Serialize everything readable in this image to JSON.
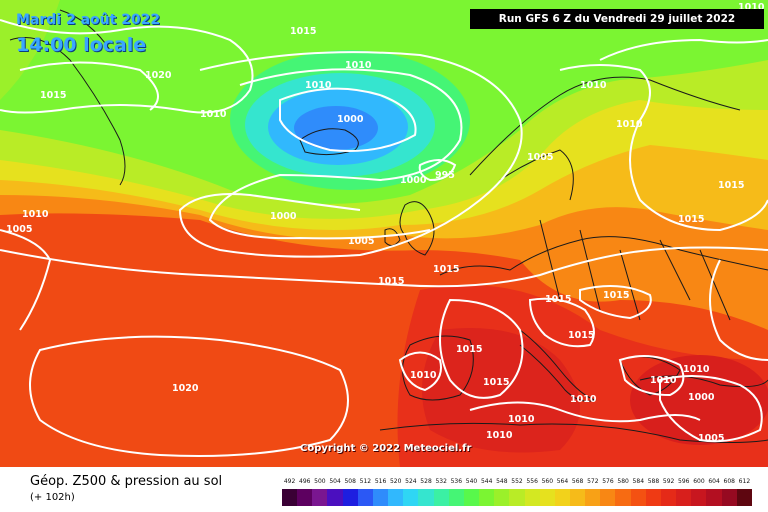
{
  "header": {
    "date_text": "Mardi 2 août 2022",
    "time_text": "14:00 locale",
    "run_text": "Run GFS 6 Z du Vendredi 29 juillet 2022"
  },
  "copyright": "Copyright © 2022 Meteociel.fr",
  "legend": {
    "title": "Géop. Z500 & pression au sol",
    "subtitle": "(+ 102h)",
    "values": [
      "492",
      "496",
      "500",
      "504",
      "508",
      "512",
      "516",
      "520",
      "524",
      "528",
      "532",
      "536",
      "540",
      "544",
      "548",
      "552",
      "556",
      "560",
      "564",
      "568",
      "572",
      "576",
      "580",
      "584",
      "588",
      "592",
      "596",
      "600",
      "604",
      "608",
      "612"
    ],
    "colors": [
      "#3a0035",
      "#5d0060",
      "#7a1690",
      "#4b0fbf",
      "#1e1ee0",
      "#2b58f5",
      "#2f8cfb",
      "#31b8fd",
      "#2fd6f4",
      "#35e5cf",
      "#3bf0a4",
      "#45f575",
      "#58f84b",
      "#7bf532",
      "#9bf02a",
      "#b9ec26",
      "#d3e822",
      "#e6e11e",
      "#f2d21b",
      "#f6bb19",
      "#f8a116",
      "#f88714",
      "#f76b12",
      "#f45112",
      "#ef3a14",
      "#e52a18",
      "#d81f1c",
      "#c8161f",
      "#b30f21",
      "#960a21",
      "#5e0610"
    ]
  },
  "isobar_labels": [
    "1015",
    "1020",
    "1015",
    "1010",
    "1010",
    "1010",
    "1000",
    "1010",
    "1010",
    "995",
    "1000",
    "1000",
    "1005",
    "1005",
    "1010",
    "1015",
    "1015",
    "1015",
    "1015",
    "1015",
    "1015",
    "1015",
    "1015",
    "1010",
    "1010",
    "1020",
    "1015",
    "1010",
    "1010",
    "1010",
    "1010",
    "1000",
    "1005",
    "1005",
    "1010"
  ]
}
